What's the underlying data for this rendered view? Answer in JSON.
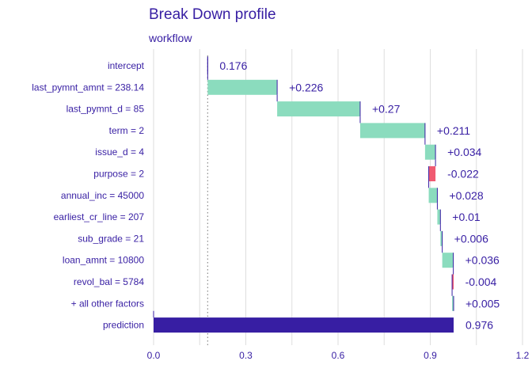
{
  "chart_data": {
    "type": "bar",
    "subtype": "waterfall",
    "title": "Break Down profile",
    "subtitle": "workflow",
    "xlim": [
      0,
      1.2
    ],
    "x_ticks": [
      0.0,
      0.3,
      0.6,
      0.9,
      1.2
    ],
    "x_tick_labels": [
      "0.0",
      "0.3",
      "0.6",
      "0.9",
      "1.2"
    ],
    "grid": true,
    "baseline": 0.176,
    "colors": {
      "text": "#371ea3",
      "positive": "#8bdcbe",
      "negative": "#f05a71",
      "prediction": "#371ea3",
      "connector": "#371ea3",
      "grid": "#dedede",
      "baseline_line": "#8a8a8a"
    },
    "bars": [
      {
        "label": "intercept",
        "kind": "intercept",
        "start": 0.176,
        "end": 0.176,
        "value_label": "0.176"
      },
      {
        "label": "last_pymnt_amnt = 238.14",
        "kind": "positive",
        "start": 0.176,
        "end": 0.402,
        "value_label": "+0.226"
      },
      {
        "label": "last_pymnt_d = 85",
        "kind": "positive",
        "start": 0.402,
        "end": 0.672,
        "value_label": "+0.27"
      },
      {
        "label": "term = 2",
        "kind": "positive",
        "start": 0.672,
        "end": 0.883,
        "value_label": "+0.211"
      },
      {
        "label": "issue_d = 4",
        "kind": "positive",
        "start": 0.883,
        "end": 0.917,
        "value_label": "+0.034"
      },
      {
        "label": "purpose = 2",
        "kind": "negative",
        "start": 0.917,
        "end": 0.895,
        "value_label": "-0.022"
      },
      {
        "label": "annual_inc = 45000",
        "kind": "positive",
        "start": 0.895,
        "end": 0.923,
        "value_label": "+0.028"
      },
      {
        "label": "earliest_cr_line = 207",
        "kind": "positive",
        "start": 0.923,
        "end": 0.933,
        "value_label": "+0.01"
      },
      {
        "label": "sub_grade = 21",
        "kind": "positive",
        "start": 0.933,
        "end": 0.939,
        "value_label": "+0.006"
      },
      {
        "label": "loan_amnt = 10800",
        "kind": "positive",
        "start": 0.939,
        "end": 0.975,
        "value_label": "+0.036"
      },
      {
        "label": "revol_bal = 5784",
        "kind": "negative",
        "start": 0.975,
        "end": 0.971,
        "value_label": "-0.004"
      },
      {
        "label": "+ all other factors",
        "kind": "positive",
        "start": 0.971,
        "end": 0.976,
        "value_label": "+0.005"
      },
      {
        "label": "prediction",
        "kind": "prediction",
        "start": 0,
        "end": 0.976,
        "value_label": "0.976"
      }
    ]
  }
}
